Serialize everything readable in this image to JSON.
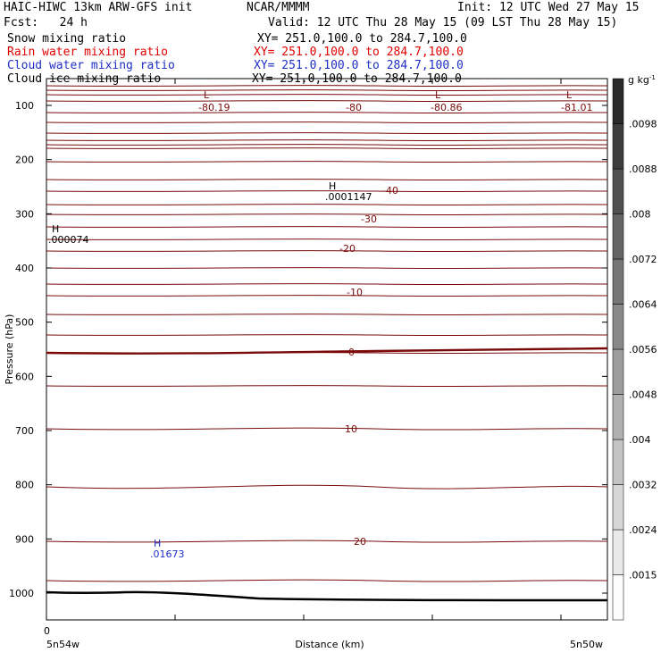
{
  "header": {
    "model": "HAIC-HIWC 13km ARW-GFS init",
    "center": "NCAR/MMMM",
    "init": "Init: 12 UTC Wed 27 May 15",
    "fcst": "Fcst:   24 h",
    "valid": "Valid: 12 UTC Thu 28 May 15 (09 LST Thu 28 May 15)",
    "fields": [
      {
        "label": "Snow mixing ratio",
        "xy": "XY= 251.0,100.0 to 284.7,100.0",
        "color": "#000000"
      },
      {
        "label": "Rain water mixing ratio",
        "xy": "XY= 251.0,100.0 to 284.7,100.0",
        "color": "#e00000"
      },
      {
        "label": "Cloud water mixing ratio",
        "xy": "XY= 251.0,100.0 to 284.7,100.0",
        "color": "#1f2fc8"
      },
      {
        "label": "Cloud ice mixing ratio",
        "xy": "XY= 251.0,100.0 to 284.7,100.0",
        "color": "#000000"
      }
    ]
  },
  "chart_data": {
    "type": "cross-section contour",
    "ylabel": "Pressure (hPa)",
    "xlabel": "Distance (km)",
    "x_origin_label": "0",
    "x_left_label": "5n54w",
    "x_right_label": "5n50w",
    "yticks": [
      100,
      200,
      300,
      400,
      500,
      600,
      700,
      800,
      900,
      1000
    ],
    "xlim": [
      251.0,
      284.7
    ],
    "colorbar": {
      "unit": "g kg",
      "unit_exp": "-1",
      "levels": [
        ".0015",
        ".0024",
        ".0032",
        ".004",
        ".0048",
        ".0056",
        ".0064",
        ".0072",
        ".008",
        ".0088",
        ".0098"
      ]
    },
    "contour_labels": [
      "-80",
      "-40",
      "-30",
      "-20",
      "-10",
      "0",
      "10",
      "20"
    ],
    "extrema": [
      {
        "type": "L",
        "value": "-80.19",
        "color": "#7a0a0a"
      },
      {
        "type": "L",
        "value": "-80.86",
        "color": "#7a0a0a"
      },
      {
        "type": "L",
        "value": "-81.01",
        "color": "#7a0a0a"
      },
      {
        "type": "H",
        "value": ".0001147",
        "color": "#000000"
      },
      {
        "type": "H",
        "value": ".000074",
        "color": "#000000"
      },
      {
        "type": "H",
        "value": ".01673",
        "color": "#1f2fc8"
      }
    ],
    "contour_color": "#7a0a0a",
    "freezing_line_hpa": 560,
    "terrain_surface_hpa": [
      1000,
      1003,
      1008
    ]
  }
}
